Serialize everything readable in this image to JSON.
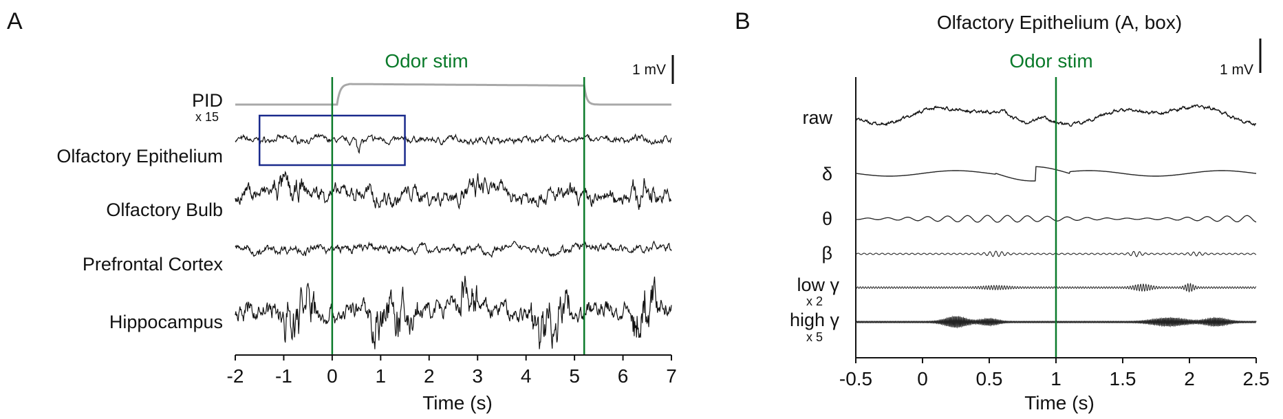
{
  "colors": {
    "trace": "#111111",
    "pid": "#a8a8a8",
    "stimulus": "#0a7a2a",
    "highlight_box": "#1a2a8c"
  },
  "chart_data": [
    {
      "panel_label": "A",
      "type": "line",
      "stimulus_label": "Odor stim",
      "stimulus_on": 0,
      "stimulus_off": 5.2,
      "scale_bar_label": "1 mV",
      "xlabel": "Time (s)",
      "xlim": [
        -2,
        7
      ],
      "xticks": [
        "-2",
        "-1",
        "0",
        "1",
        "2",
        "3",
        "4",
        "5",
        "6",
        "7"
      ],
      "highlight_box": {
        "x_start": -1.5,
        "x_end": 1.5,
        "trace": "Olfactory Epithelium"
      },
      "series": [
        {
          "name": "PID",
          "gain_label": "x 15",
          "baseline": 0,
          "plateau": 1,
          "rise": 0.1,
          "fall": 5.2
        },
        {
          "name": "Olfactory Epithelium",
          "amplitude": 0.3
        },
        {
          "name": "Olfactory Bulb",
          "amplitude": 0.6
        },
        {
          "name": "Prefrontal Cortex",
          "amplitude": 0.35
        },
        {
          "name": "Hippocampus",
          "amplitude": 1.0
        }
      ]
    },
    {
      "panel_label": "B",
      "title": "Olfactory Epithelium (A, box)",
      "type": "line",
      "stimulus_label": "Odor stim",
      "stimulus_on": 1,
      "scale_bar_label": "1 mV",
      "xlabel": "Time (s)",
      "xlim": [
        -0.5,
        2.5
      ],
      "xticks": [
        "-0.5",
        "0",
        "0.5",
        "1",
        "1.5",
        "2",
        "2.5"
      ],
      "series": [
        {
          "name": "raw",
          "gain_label": ""
        },
        {
          "name": "δ",
          "gain_label": ""
        },
        {
          "name": "θ",
          "gain_label": ""
        },
        {
          "name": "β",
          "gain_label": ""
        },
        {
          "name": "low γ",
          "gain_label": "x 2"
        },
        {
          "name": "high γ",
          "gain_label": "x 5"
        }
      ]
    }
  ]
}
